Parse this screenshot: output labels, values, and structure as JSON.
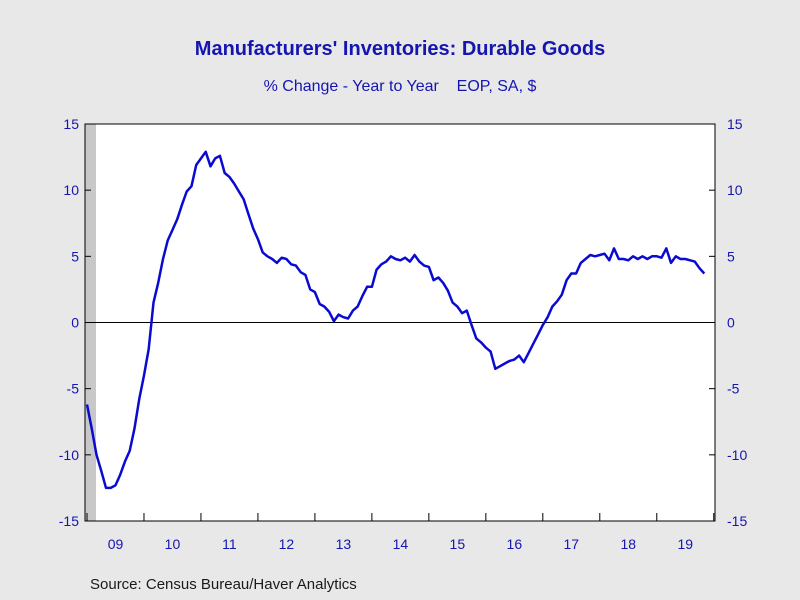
{
  "colors": {
    "line": "#0a0ad0",
    "text": "#1515b0",
    "background": "#e8e8e8",
    "plot_background": "#ffffff",
    "recession": "#c8c8c8"
  },
  "source": "Source:  Census Bureau/Haver Analytics",
  "chart_data": {
    "type": "line",
    "title": "Manufacturers' Inventories: Durable Goods",
    "subtitle": "% Change - Year to Year    EOP, SA, $",
    "xlabel": "",
    "ylabel": "",
    "ylim": [
      -15,
      15
    ],
    "yticks": [
      15,
      10,
      5,
      0,
      -5,
      -10,
      -15
    ],
    "xlim": [
      2009.0,
      2019.9167
    ],
    "xticks": [
      {
        "label": "09",
        "year": 2009
      },
      {
        "label": "10",
        "year": 2010
      },
      {
        "label": "11",
        "year": 2011
      },
      {
        "label": "12",
        "year": 2012
      },
      {
        "label": "13",
        "year": 2013
      },
      {
        "label": "14",
        "year": 2014
      },
      {
        "label": "15",
        "year": 2015
      },
      {
        "label": "16",
        "year": 2016
      },
      {
        "label": "17",
        "year": 2017
      },
      {
        "label": "18",
        "year": 2018
      },
      {
        "label": "19",
        "year": 2019
      }
    ],
    "axes": "left and right",
    "grid": false,
    "zero_line": true,
    "recession_shading": [
      {
        "start": "2009-01",
        "end": "2009-06"
      }
    ],
    "series": [
      {
        "start": "2009-01",
        "frequency": "monthly",
        "values": [
          -6.2,
          -8.0,
          -10.0,
          -11.2,
          -12.5,
          -12.5,
          -12.3,
          -11.5,
          -10.5,
          -9.7,
          -8.0,
          -5.8,
          -4.0,
          -2.0,
          1.5,
          3.0,
          4.8,
          6.2,
          7.0,
          7.8,
          8.9,
          9.9,
          10.3,
          11.9,
          12.4,
          12.9,
          11.8,
          12.4,
          12.6,
          11.3,
          11.0,
          10.5,
          9.9,
          9.3,
          8.2,
          7.1,
          6.3,
          5.3,
          5.0,
          4.8,
          4.5,
          4.9,
          4.8,
          4.4,
          4.3,
          3.8,
          3.6,
          2.5,
          2.3,
          1.4,
          1.2,
          0.8,
          0.1,
          0.6,
          0.4,
          0.3,
          0.9,
          1.2,
          2.0,
          2.7,
          2.7,
          4.0,
          4.4,
          4.6,
          5.0,
          4.8,
          4.7,
          4.9,
          4.6,
          5.1,
          4.6,
          4.3,
          4.2,
          3.2,
          3.4,
          3.0,
          2.4,
          1.5,
          1.2,
          0.7,
          0.9,
          -0.2,
          -1.2,
          -1.5,
          -1.9,
          -2.2,
          -3.5,
          -3.3,
          -3.1,
          -2.9,
          -2.8,
          -2.5,
          -3.0,
          -2.3,
          -1.6,
          -0.9,
          -0.2,
          0.4,
          1.2,
          1.6,
          2.1,
          3.2,
          3.7,
          3.7,
          4.5,
          4.8,
          5.1,
          5.0,
          5.1,
          5.2,
          4.7,
          5.6,
          4.8,
          4.8,
          4.7,
          5.0,
          4.8,
          5.0,
          4.8,
          5.0,
          5.0,
          4.9,
          5.6,
          4.5,
          5.0,
          4.8,
          4.8,
          4.7,
          4.6,
          4.1,
          3.7
        ]
      }
    ]
  }
}
